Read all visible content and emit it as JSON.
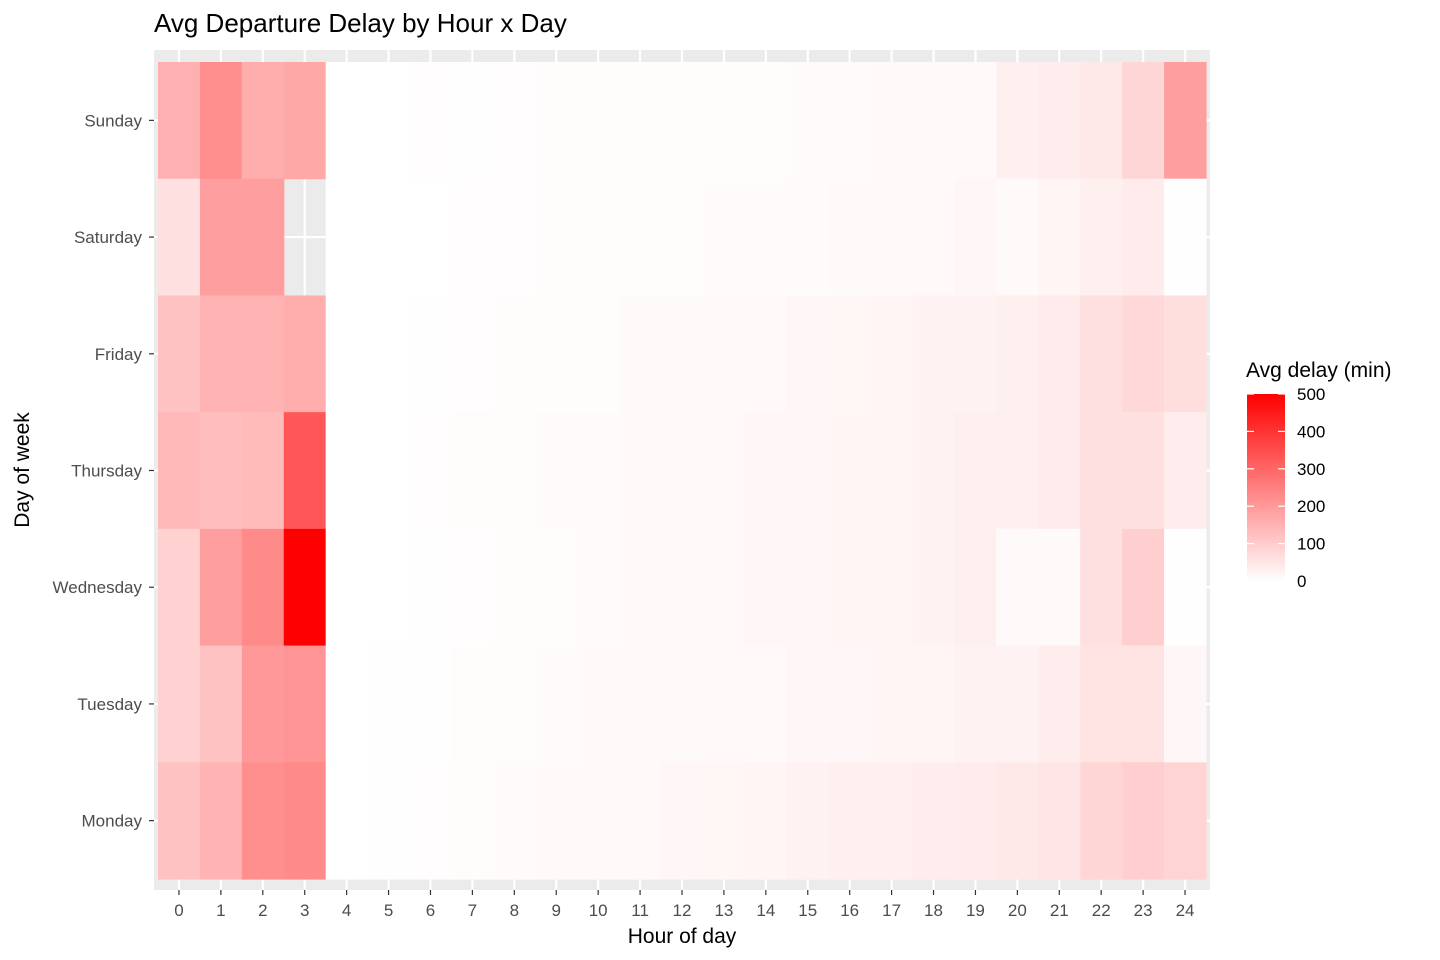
{
  "chart_data": {
    "type": "heatmap",
    "title": "Avg Departure Delay by Hour x Day",
    "xlabel": "Hour of day",
    "ylabel": "Day of week",
    "x": [
      0,
      1,
      2,
      3,
      4,
      5,
      6,
      7,
      8,
      9,
      10,
      11,
      12,
      13,
      14,
      15,
      16,
      17,
      18,
      19,
      20,
      21,
      22,
      23,
      24
    ],
    "y": [
      "Sunday",
      "Saturday",
      "Friday",
      "Thursday",
      "Wednesday",
      "Tuesday",
      "Monday"
    ],
    "values": [
      [
        155,
        220,
        160,
        170,
        0,
        0,
        3,
        1,
        4,
        5,
        5,
        6,
        6,
        6,
        6,
        7,
        8,
        10,
        10,
        12,
        30,
        35,
        45,
        80,
        190
      ],
      [
        60,
        190,
        190,
        null,
        0,
        0,
        0,
        3,
        4,
        5,
        5,
        6,
        6,
        7,
        8,
        8,
        9,
        10,
        12,
        15,
        10,
        20,
        30,
        40,
        2
      ],
      [
        120,
        150,
        150,
        160,
        0,
        0,
        2,
        4,
        5,
        6,
        6,
        10,
        10,
        12,
        12,
        15,
        18,
        20,
        25,
        25,
        30,
        40,
        60,
        75,
        65
      ],
      [
        140,
        130,
        135,
        330,
        0,
        0,
        3,
        5,
        6,
        8,
        8,
        10,
        10,
        12,
        15,
        16,
        20,
        20,
        25,
        30,
        30,
        40,
        60,
        60,
        35
      ],
      [
        90,
        190,
        230,
        500,
        0,
        0,
        2,
        3,
        5,
        6,
        8,
        10,
        10,
        12,
        15,
        16,
        20,
        20,
        25,
        30,
        10,
        10,
        60,
        95,
        2
      ],
      [
        90,
        120,
        200,
        210,
        0,
        2,
        2,
        5,
        6,
        8,
        10,
        10,
        10,
        12,
        12,
        15,
        16,
        20,
        20,
        25,
        25,
        35,
        55,
        55,
        15
      ],
      [
        120,
        150,
        220,
        230,
        0,
        2,
        3,
        5,
        8,
        10,
        12,
        12,
        15,
        18,
        20,
        25,
        30,
        30,
        35,
        40,
        45,
        50,
        80,
        95,
        85
      ]
    ],
    "colorscale": {
      "low": "#ffffff",
      "high": "#ff0000",
      "limits": [
        0,
        500
      ],
      "na_color": "#ebebeb"
    },
    "legend": {
      "title": "Avg delay (min)",
      "ticks": [
        0,
        100,
        200,
        300,
        400,
        500
      ],
      "position": "right"
    },
    "grid": true,
    "panel_background": "#ebebeb"
  }
}
